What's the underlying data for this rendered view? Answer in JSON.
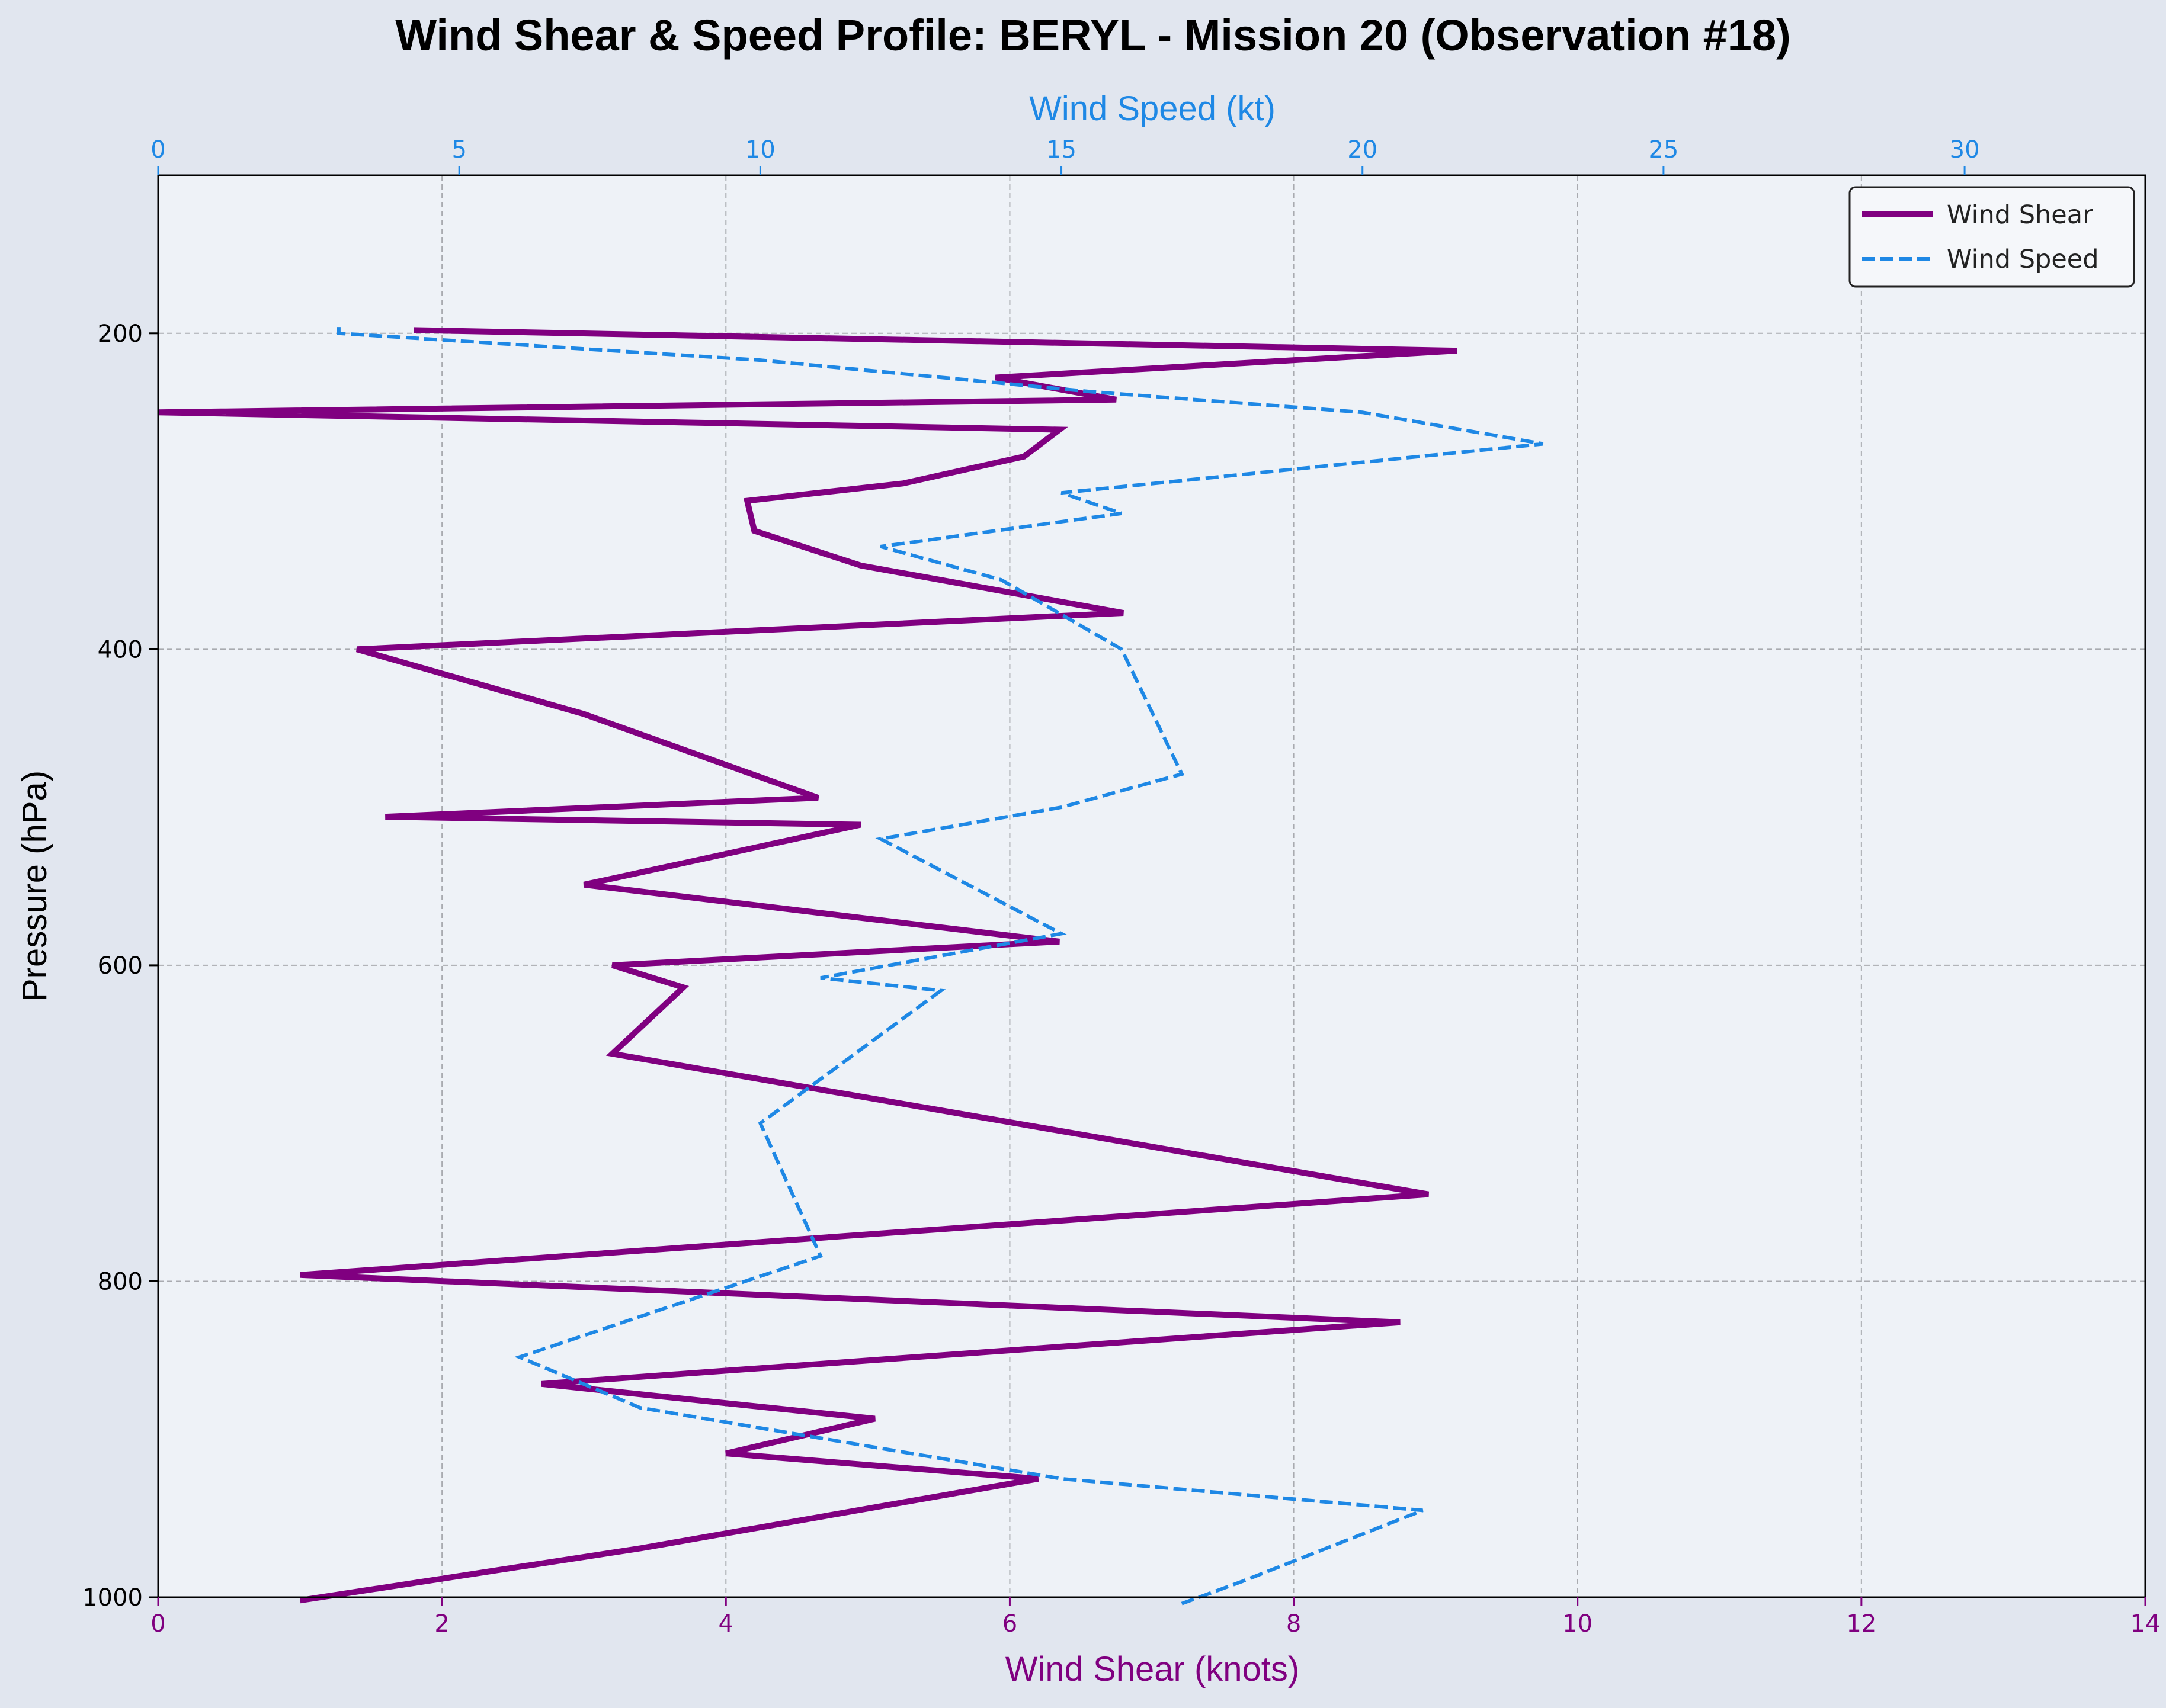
{
  "chart_data": {
    "type": "line",
    "title": "Wind Shear & Speed Profile: BERYL - Mission 20 (Observation #18)",
    "colors": {
      "shear": "#800080",
      "speed": "#1e88e5",
      "plot_bg": "#eef2f7",
      "page_bg": "#e1e6ef",
      "grid": "#a9abb0"
    },
    "y_axis": {
      "label": "Pressure (hPa)",
      "range": [
        100,
        1000
      ],
      "inverted": true,
      "ticks": [
        200,
        400,
        600,
        800,
        1000
      ]
    },
    "x_axis_bottom": {
      "label": "Wind Shear (knots)",
      "range": [
        0,
        14
      ],
      "ticks": [
        0,
        2,
        4,
        6,
        8,
        10,
        12,
        14
      ]
    },
    "x_axis_top": {
      "label": "Wind Speed (kt)",
      "range": [
        0,
        33
      ],
      "ticks": [
        0,
        5,
        10,
        15,
        20,
        25,
        30
      ]
    },
    "grid": true,
    "legend_position": "top-right",
    "series": [
      {
        "name": "Wind Shear",
        "axis": "bottom",
        "style": "solid",
        "points": [
          [
            1.8,
            198
          ],
          [
            9.15,
            211
          ],
          [
            5.9,
            228
          ],
          [
            6.75,
            242
          ],
          [
            0.0,
            250
          ],
          [
            6.35,
            261
          ],
          [
            6.1,
            278
          ],
          [
            5.25,
            295
          ],
          [
            4.15,
            306
          ],
          [
            4.2,
            325
          ],
          [
            4.95,
            347
          ],
          [
            6.8,
            377
          ],
          [
            1.4,
            400
          ],
          [
            3.0,
            441
          ],
          [
            4.65,
            494
          ],
          [
            1.6,
            506
          ],
          [
            4.95,
            511
          ],
          [
            3.0,
            549
          ],
          [
            6.35,
            585
          ],
          [
            3.2,
            600
          ],
          [
            3.7,
            614
          ],
          [
            3.2,
            656
          ],
          [
            8.95,
            745
          ],
          [
            1.0,
            796
          ],
          [
            8.75,
            826
          ],
          [
            2.7,
            865
          ],
          [
            5.05,
            887
          ],
          [
            4.0,
            909
          ],
          [
            6.2,
            925
          ],
          [
            3.4,
            969
          ],
          [
            1.0,
            1002
          ]
        ]
      },
      {
        "name": "Wind Speed",
        "axis": "top",
        "style": "dashed",
        "points": [
          [
            3.0,
            196
          ],
          [
            3.0,
            200
          ],
          [
            10.0,
            217
          ],
          [
            15.5,
            237
          ],
          [
            20.0,
            250
          ],
          [
            23.0,
            270
          ],
          [
            15.0,
            301
          ],
          [
            16.0,
            314
          ],
          [
            12.0,
            335
          ],
          [
            14.0,
            356
          ],
          [
            16.0,
            400
          ],
          [
            17.0,
            479
          ],
          [
            15.0,
            500
          ],
          [
            12.0,
            520
          ],
          [
            15.0,
            580
          ],
          [
            11.0,
            608
          ],
          [
            13.0,
            616
          ],
          [
            10.0,
            700
          ],
          [
            11.0,
            784
          ],
          [
            6.0,
            848
          ],
          [
            8.0,
            880
          ],
          [
            15.0,
            925
          ],
          [
            21.0,
            945
          ],
          [
            18.0,
            990
          ],
          [
            17.0,
            1004
          ]
        ]
      }
    ]
  }
}
